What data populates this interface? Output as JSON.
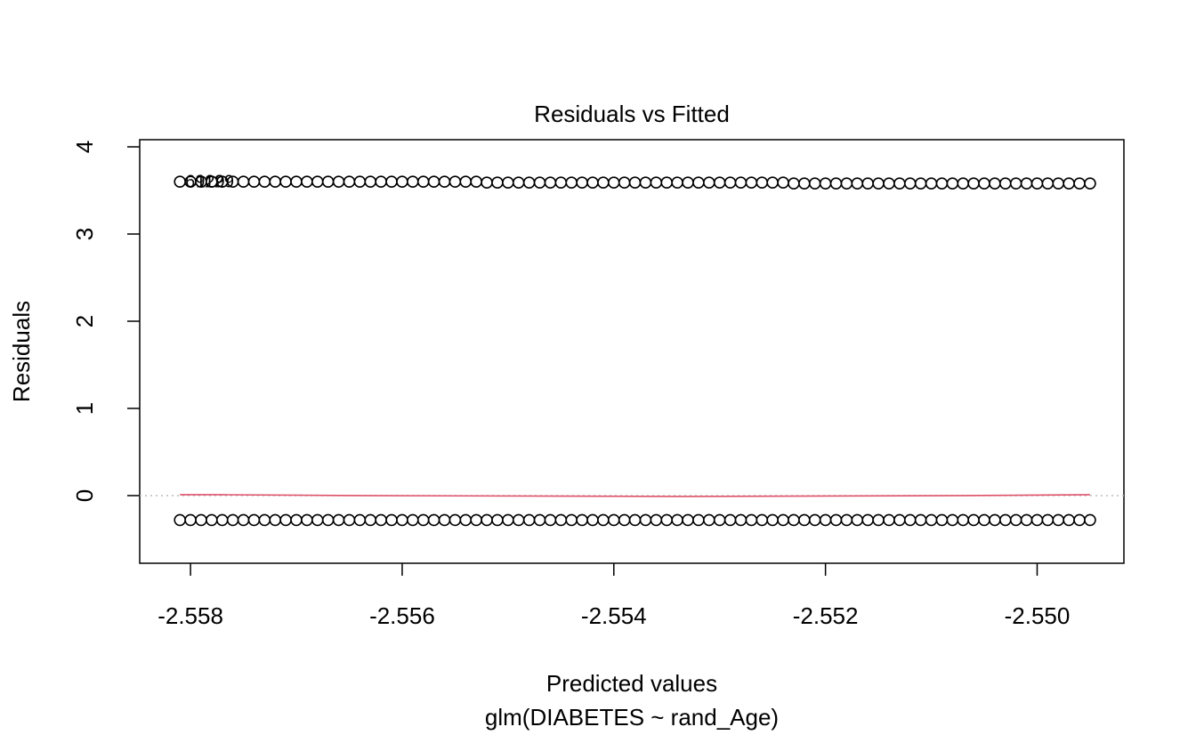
{
  "chart_data": {
    "type": "scatter",
    "title": "Residuals vs Fitted",
    "x_label": "Predicted values",
    "subtitle": "glm(DIABETES ~ rand_Age)",
    "y_label": "Residuals",
    "xlim": [
      -2.55848,
      -2.54918
    ],
    "ylim": [
      -0.776,
      4.082
    ],
    "xticks": [
      -2.558,
      -2.556,
      -2.554,
      -2.552,
      {
        "value": -2.55,
        "label": "-2.550"
      }
    ],
    "yticks": [
      0,
      1,
      2,
      3,
      4
    ],
    "zero_line": 0,
    "x": [
      -2.5581,
      -2.558,
      -2.5579,
      -2.5578,
      -2.5577,
      -2.5576,
      -2.5575,
      -2.5574,
      -2.5573,
      -2.5572,
      -2.5571,
      -2.557,
      -2.5569,
      -2.5568,
      -2.5567,
      -2.5566,
      -2.5565,
      -2.5564,
      -2.5563,
      -2.5562,
      -2.5561,
      -2.556,
      -2.5559,
      -2.5558,
      -2.5557,
      -2.5556,
      -2.5555,
      -2.5554,
      -2.5553,
      -2.5552,
      -2.5551,
      -2.555,
      -2.5549,
      -2.5548,
      -2.5547,
      -2.5546,
      -2.5545,
      -2.5544,
      -2.5543,
      -2.5542,
      -2.5541,
      -2.554,
      -2.5539,
      -2.5538,
      -2.5537,
      -2.5536,
      -2.5535,
      -2.5534,
      -2.5533,
      -2.5532,
      -2.5531,
      -2.553,
      -2.5529,
      -2.5528,
      -2.5527,
      -2.5526,
      -2.5525,
      -2.5524,
      -2.5523,
      -2.5522,
      -2.5521,
      -2.552,
      -2.5519,
      -2.5518,
      -2.5517,
      -2.5516,
      -2.5515,
      -2.5514,
      -2.5513,
      -2.5512,
      -2.5511,
      -2.551,
      -2.5509,
      -2.5508,
      -2.5507,
      -2.5506,
      -2.5505,
      -2.5504,
      -2.5503,
      -2.5502,
      -2.5501,
      -2.55,
      -2.5499,
      -2.5498,
      -2.5497,
      -2.5496,
      -2.5495
    ],
    "series": [
      {
        "color": "#000000",
        "values": [
          3.6,
          3.6,
          3.6,
          3.6,
          3.6,
          3.6,
          3.6,
          3.6,
          3.6,
          3.6,
          3.6,
          3.6,
          3.6,
          3.6,
          3.6,
          3.6,
          3.6,
          3.6,
          3.6,
          3.6,
          3.6,
          3.6,
          3.6,
          3.6,
          3.6,
          3.6,
          3.6,
          3.6,
          3.6,
          3.59,
          3.59,
          3.59,
          3.59,
          3.59,
          3.59,
          3.59,
          3.59,
          3.59,
          3.59,
          3.59,
          3.59,
          3.59,
          3.59,
          3.59,
          3.59,
          3.59,
          3.59,
          3.59,
          3.59,
          3.59,
          3.59,
          3.59,
          3.59,
          3.59,
          3.59,
          3.59,
          3.59,
          3.59,
          3.58,
          3.58,
          3.58,
          3.58,
          3.58,
          3.58,
          3.58,
          3.58,
          3.58,
          3.58,
          3.58,
          3.58,
          3.58,
          3.58,
          3.58,
          3.58,
          3.58,
          3.58,
          3.58,
          3.58,
          3.58,
          3.58,
          3.58,
          3.58,
          3.58,
          3.58,
          3.58,
          3.58,
          3.58
        ]
      },
      {
        "color": "#000000",
        "values": [
          -0.28,
          -0.28,
          -0.28,
          -0.28,
          -0.28,
          -0.28,
          -0.28,
          -0.28,
          -0.28,
          -0.28,
          -0.28,
          -0.28,
          -0.28,
          -0.28,
          -0.28,
          -0.28,
          -0.28,
          -0.28,
          -0.28,
          -0.28,
          -0.28,
          -0.28,
          -0.28,
          -0.28,
          -0.28,
          -0.28,
          -0.28,
          -0.28,
          -0.28,
          -0.28,
          -0.28,
          -0.28,
          -0.28,
          -0.28,
          -0.28,
          -0.28,
          -0.28,
          -0.28,
          -0.28,
          -0.28,
          -0.28,
          -0.28,
          -0.28,
          -0.28,
          -0.28,
          -0.28,
          -0.28,
          -0.28,
          -0.28,
          -0.28,
          -0.28,
          -0.28,
          -0.28,
          -0.28,
          -0.28,
          -0.28,
          -0.28,
          -0.28,
          -0.28,
          -0.28,
          -0.28,
          -0.28,
          -0.28,
          -0.28,
          -0.28,
          -0.28,
          -0.28,
          -0.28,
          -0.28,
          -0.28,
          -0.28,
          -0.28,
          -0.28,
          -0.28,
          -0.28,
          -0.28,
          -0.28,
          -0.28,
          -0.28,
          -0.28,
          -0.28,
          -0.28,
          -0.28,
          -0.28,
          -0.28,
          -0.28,
          -0.28
        ]
      }
    ],
    "smooth": {
      "color": "#DF536B",
      "x": [
        -2.5581,
        -2.5577,
        -2.5564,
        -2.5533,
        -2.5507,
        -2.5495
      ],
      "values": [
        0.01,
        0.01,
        0,
        -0.01,
        0,
        0.01
      ]
    },
    "point_labels": [
      {
        "text": "6929",
        "x": -2.558,
        "y": 3.59
      },
      {
        "text": "1129",
        "x": -2.5579,
        "y": 3.59
      }
    ]
  }
}
